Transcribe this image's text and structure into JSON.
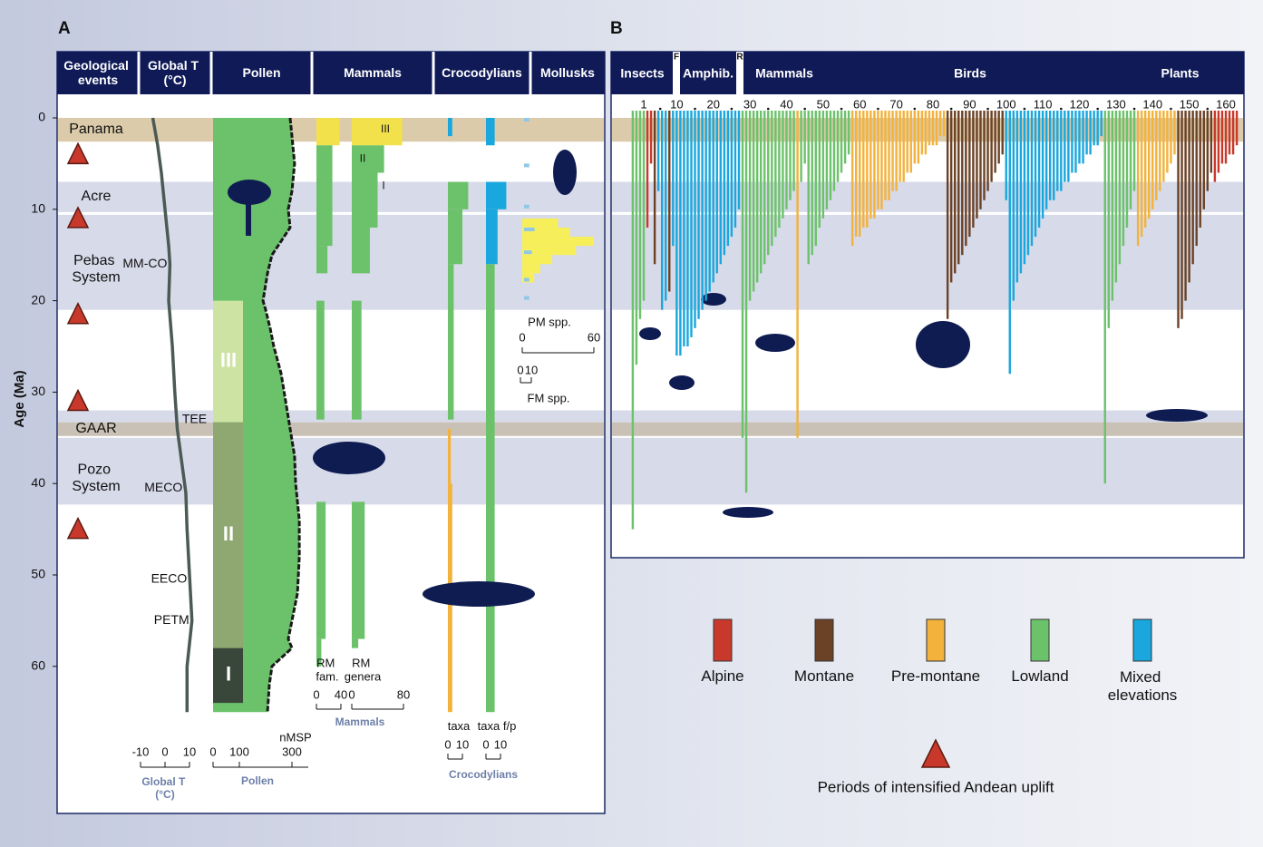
{
  "panel_a": {
    "label": "A",
    "headers": [
      "Geological events",
      "Global T (°C)",
      "Pollen",
      "Mammals",
      "Crocodylians",
      "Mollusks"
    ],
    "age_axis": {
      "title": "Age (Ma)",
      "lim": [
        0,
        65
      ],
      "ticks": [
        0,
        10,
        20,
        30,
        40,
        50,
        60
      ]
    },
    "events": [
      {
        "name": "Panama",
        "from": 0,
        "to": 2.6,
        "color": "#dccbaa"
      },
      {
        "name": "Acre",
        "from": 7,
        "to": 10.3,
        "color": "#d7dae9"
      },
      {
        "name": "Pebas System",
        "from": 10.6,
        "to": 21,
        "color": "#d7dae9"
      },
      {
        "name": null,
        "from": 32,
        "to": 33.3,
        "color": "#d7dae9"
      },
      {
        "name": "GAAR",
        "from": 33.3,
        "to": 34.8,
        "color": "#c9c1b5"
      },
      {
        "name": "Pozo System",
        "from": 35,
        "to": 42.3,
        "color": "#d7dae9"
      }
    ],
    "uplift_ages": [
      4,
      11,
      21.5,
      31,
      45
    ],
    "global_t": {
      "label": "Global T (°C)",
      "ticks": [
        -10,
        0,
        10
      ],
      "ages": [
        0,
        3,
        6,
        10,
        14,
        16,
        20,
        25,
        30,
        34,
        38,
        41,
        45,
        50,
        55,
        60,
        65
      ],
      "temps": [
        -5,
        -3,
        -1.5,
        0,
        1.5,
        2,
        1.5,
        3,
        4,
        5,
        7,
        8.5,
        9,
        10,
        11,
        9,
        9
      ],
      "annotations": [
        {
          "text": "MM-CO",
          "age": 16
        },
        {
          "text": "TEE",
          "age": 33
        },
        {
          "text": "MECO",
          "age": 40.5
        },
        {
          "text": "EECO",
          "age": 50.5
        },
        {
          "text": "PETM",
          "age": 55
        }
      ]
    },
    "pollen": {
      "label": "Pollen",
      "unit": "nMSP",
      "ticks": [
        0,
        100,
        300
      ],
      "ages": [
        0,
        2,
        5,
        8,
        10,
        12,
        15,
        17,
        20,
        21,
        23,
        25,
        28,
        31,
        34,
        37,
        40,
        44,
        48,
        52,
        55,
        57,
        58,
        60,
        62,
        65
      ],
      "nmsp": [
        293,
        300,
        310,
        300,
        286,
        293,
        224,
        207,
        190,
        200,
        217,
        231,
        259,
        276,
        293,
        310,
        314,
        328,
        328,
        321,
        300,
        286,
        300,
        224,
        214,
        207
      ],
      "zones": [
        {
          "label": "III",
          "from": 20,
          "to": 33.3,
          "color": "#cde3a4"
        },
        {
          "label": "II",
          "from": 33.3,
          "to": 58,
          "color": "#8fa872"
        },
        {
          "label": "I",
          "from": 58,
          "to": 64,
          "color": "#38473a"
        }
      ]
    },
    "mammals": {
      "label": "Mammals",
      "zone_labels": [
        {
          "text": "III",
          "age": 0.8
        },
        {
          "text": "II",
          "age": 4
        },
        {
          "text": "I",
          "age": 7
        }
      ],
      "columns": [
        {
          "label": "RM fam.",
          "ticks": [
            0,
            40
          ],
          "intervals": [
            {
              "from": 0,
              "to": 3,
              "value": 38,
              "color": "#f2e14b"
            },
            {
              "from": 3,
              "to": 14,
              "value": 26,
              "color": "#6cc26a"
            },
            {
              "from": 14,
              "to": 17,
              "value": 18,
              "color": "#6cc26a"
            },
            {
              "from": 20,
              "to": 33,
              "value": 13,
              "color": "#6cc26a"
            },
            {
              "from": 42,
              "to": 57,
              "value": 15,
              "color": "#6cc26a"
            },
            {
              "from": 57,
              "to": 60,
              "value": 8,
              "color": "#6cc26a"
            }
          ]
        },
        {
          "label": "RM genera",
          "ticks": [
            0,
            80
          ],
          "intervals": [
            {
              "from": 0,
              "to": 3,
              "value": 78,
              "color": "#f2e14b"
            },
            {
              "from": 3,
              "to": 6,
              "value": 50,
              "color": "#6cc26a"
            },
            {
              "from": 6,
              "to": 12,
              "value": 40,
              "color": "#6cc26a"
            },
            {
              "from": 12,
              "to": 17,
              "value": 28,
              "color": "#6cc26a"
            },
            {
              "from": 20,
              "to": 33,
              "value": 15,
              "color": "#6cc26a"
            },
            {
              "from": 42,
              "to": 57,
              "value": 20,
              "color": "#6cc26a"
            },
            {
              "from": 57,
              "to": 58,
              "value": 10,
              "color": "#6cc26a"
            }
          ]
        }
      ]
    },
    "crocodylians": {
      "label": "Crocodylians",
      "columns": [
        {
          "label": "taxa",
          "ticks": [
            0,
            10
          ],
          "intervals": [
            {
              "from": 0,
              "to": 2,
              "value": 3,
              "color": "#1aa7dd"
            },
            {
              "from": 7,
              "to": 10,
              "value": 14,
              "color": "#6cc26a"
            },
            {
              "from": 10,
              "to": 16,
              "value": 10,
              "color": "#6cc26a"
            },
            {
              "from": 16,
              "to": 33,
              "value": 4,
              "color": "#6cc26a"
            },
            {
              "from": 34,
              "to": 40,
              "value": 2,
              "color": "#f3b23b"
            },
            {
              "from": 40,
              "to": 65,
              "value": 3,
              "color": "#f3b23b"
            }
          ]
        },
        {
          "label": "taxa f/p",
          "ticks": [
            0,
            10
          ],
          "intervals": [
            {
              "from": 0,
              "to": 3,
              "value": 6,
              "color": "#1aa7dd"
            },
            {
              "from": 7,
              "to": 10,
              "value": 14,
              "color": "#1aa7dd"
            },
            {
              "from": 10,
              "to": 16,
              "value": 8,
              "color": "#1aa7dd"
            },
            {
              "from": 16,
              "to": 65,
              "value": 6,
              "color": "#6cc26a"
            }
          ]
        }
      ]
    },
    "mollusks": {
      "pm": {
        "label": "PM spp.",
        "ticks": [
          0,
          60
        ],
        "color": "#f6ef5a",
        "intervals": [
          {
            "from": 11,
            "to": 12,
            "value": 30
          },
          {
            "from": 12,
            "to": 13,
            "value": 40
          },
          {
            "from": 13,
            "to": 14,
            "value": 60
          },
          {
            "from": 14,
            "to": 15,
            "value": 45
          },
          {
            "from": 15,
            "to": 16,
            "value": 25
          },
          {
            "from": 16,
            "to": 17,
            "value": 15
          },
          {
            "from": 17,
            "to": 18,
            "value": 10
          }
        ]
      },
      "fm": {
        "label": "FM spp.",
        "ticks": [
          0,
          10
        ],
        "color": "#8ec7e8",
        "points": [
          {
            "age": 0,
            "value": 4
          },
          {
            "age": 5,
            "value": 4
          },
          {
            "age": 9.5,
            "value": 4
          },
          {
            "age": 12,
            "value": 8
          },
          {
            "age": 14.5,
            "value": 6
          },
          {
            "age": 17.5,
            "value": 4
          },
          {
            "age": 19.5,
            "value": 4
          }
        ]
      }
    }
  },
  "panel_b": {
    "label": "B",
    "groups": [
      "Insects",
      "F",
      "Amphib.",
      "R",
      "Mammals",
      "Birds",
      "Plants"
    ],
    "xticks": [
      1,
      10,
      20,
      30,
      40,
      50,
      60,
      70,
      80,
      90,
      100,
      110,
      120,
      130,
      140,
      150,
      160
    ],
    "series": [
      {
        "name": "Alpine",
        "color": "#c8392b",
        "x": [
          2,
          3,
          157,
          158,
          159,
          160,
          161,
          162,
          163
        ],
        "ages": [
          12,
          5,
          7,
          6,
          5,
          5,
          4,
          4,
          3
        ]
      },
      {
        "name": "Montane",
        "color": "#6b4226",
        "x": [
          4,
          8,
          84,
          85,
          86,
          87,
          88,
          89,
          90,
          91,
          92,
          93,
          94,
          95,
          96,
          97,
          98,
          99,
          147,
          148,
          149,
          150,
          151,
          152,
          153,
          154,
          155,
          156
        ],
        "ages": [
          16,
          19,
          22,
          18,
          17,
          16,
          15,
          14,
          13,
          12,
          11,
          10,
          9,
          8,
          7,
          6,
          5,
          4,
          23,
          22,
          20,
          18,
          16,
          14,
          12,
          10,
          8,
          6
        ]
      },
      {
        "name": "Pre-montane",
        "color": "#f3b23b",
        "x": [
          43,
          58,
          59,
          60,
          61,
          62,
          63,
          64,
          65,
          66,
          67,
          68,
          69,
          70,
          71,
          72,
          73,
          74,
          75,
          76,
          77,
          78,
          79,
          80,
          81,
          82,
          83,
          136,
          137,
          138,
          139,
          140,
          141,
          142,
          143,
          144,
          145,
          146
        ],
        "ages": [
          35,
          14,
          13,
          13,
          12,
          12,
          11,
          11,
          10,
          10,
          9,
          9,
          8,
          8,
          7,
          7,
          6,
          6,
          5,
          5,
          4,
          4,
          3,
          3,
          3,
          2,
          2,
          14,
          13,
          12,
          11,
          10,
          9,
          8,
          7,
          6,
          5,
          4
        ]
      },
      {
        "name": "Lowland",
        "color": "#6cc26a",
        "x": [
          -2,
          -1,
          0,
          1,
          28,
          29,
          30,
          31,
          32,
          33,
          34,
          35,
          36,
          37,
          38,
          39,
          40,
          41,
          42,
          44,
          45,
          46,
          47,
          48,
          49,
          50,
          51,
          52,
          53,
          54,
          55,
          56,
          57,
          127,
          128,
          129,
          130,
          131,
          132,
          133,
          134,
          135
        ],
        "ages": [
          45,
          27,
          22,
          20,
          35,
          41,
          20,
          19,
          18,
          17,
          16,
          15,
          14,
          13,
          12,
          11,
          10,
          9,
          8,
          7,
          5,
          16,
          15,
          14,
          12,
          11,
          10,
          9,
          8,
          7,
          6,
          5,
          4,
          40,
          23,
          20,
          18,
          16,
          14,
          12,
          10,
          8
        ]
      },
      {
        "name": "Mixed elevations",
        "color": "#1aa7dd",
        "x": [
          5,
          6,
          7,
          9,
          10,
          11,
          12,
          13,
          14,
          15,
          16,
          17,
          18,
          19,
          20,
          21,
          22,
          23,
          24,
          25,
          26,
          27,
          100,
          101,
          102,
          103,
          104,
          105,
          106,
          107,
          108,
          109,
          110,
          111,
          112,
          113,
          114,
          115,
          116,
          117,
          118,
          119,
          120,
          121,
          122,
          123,
          124,
          125,
          126
        ],
        "ages": [
          8,
          21,
          20,
          14,
          26,
          26,
          25,
          25,
          24,
          23,
          22,
          21,
          20,
          19,
          18,
          17,
          16,
          15,
          14,
          13,
          12,
          10,
          9,
          28,
          20,
          18,
          17,
          16,
          15,
          14,
          13,
          12,
          11,
          10,
          9,
          9,
          8,
          8,
          7,
          7,
          6,
          6,
          5,
          5,
          4,
          4,
          3,
          3,
          2
        ]
      }
    ]
  },
  "legend": {
    "uplift_label": "Periods of intensified Andean uplift"
  }
}
